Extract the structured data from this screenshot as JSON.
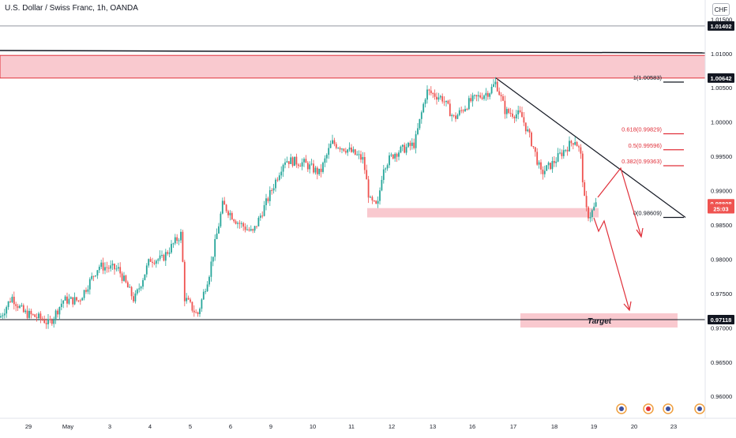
{
  "chart_data": {
    "type": "candlestick",
    "title": "U.S. Dollar / Swiss Franc, 1h, OANDA",
    "currency": "CHF",
    "ylim": [
      0.9568,
      1.0178
    ],
    "y_ticks": [
      "1.01500",
      "1.01000",
      "1.00500",
      "1.00000",
      "0.99500",
      "0.99000",
      "0.98500",
      "0.98000",
      "0.97500",
      "0.97000",
      "0.96500",
      "0.96000"
    ],
    "x_ticks": [
      "29",
      "May",
      "3",
      "4",
      "5",
      "6",
      "9",
      "10",
      "11",
      "12",
      "13",
      "16",
      "17",
      "18",
      "19",
      "20",
      "23"
    ],
    "price_tags": [
      {
        "label": "1.01402",
        "value": 1.01402,
        "style": "dark"
      },
      {
        "label": "1.00642",
        "value": 1.00642,
        "style": "dark"
      },
      {
        "label": "0.98808",
        "value": 0.98808,
        "style": "red"
      },
      {
        "label": "25:03",
        "value": 0.98736,
        "style": "red"
      },
      {
        "label": "0.97118",
        "value": 0.97118,
        "style": "dark"
      }
    ],
    "horizontal_lines": [
      1.01402,
      0.97118
    ],
    "resistance_zone": [
      1.00642,
      1.00972
    ],
    "support_zone": [
      0.98609,
      0.98745
    ],
    "target_label": "Target",
    "fibonacci": [
      {
        "label": "1(1.00583)",
        "value": 1.00583
      },
      {
        "label": "0.618(0.99829)",
        "value": 0.99829
      },
      {
        "label": "0.5(0.99596)",
        "value": 0.99596
      },
      {
        "label": "0.382(0.99363)",
        "value": 0.99363
      },
      {
        "label": "0(0.98609)",
        "value": 0.98609
      }
    ],
    "trendline": [
      [
        628,
        1.00642
      ],
      [
        868,
        0.98609
      ]
    ],
    "path": [
      {
        "x": 0,
        "y": 0.9715
      },
      {
        "x": 15,
        "y": 0.9745
      },
      {
        "x": 30,
        "y": 0.9722
      },
      {
        "x": 55,
        "y": 0.9712
      },
      {
        "x": 62,
        "y": 0.9705
      },
      {
        "x": 80,
        "y": 0.974
      },
      {
        "x": 100,
        "y": 0.974
      },
      {
        "x": 125,
        "y": 0.979
      },
      {
        "x": 150,
        "y": 0.9785
      },
      {
        "x": 170,
        "y": 0.974
      },
      {
        "x": 190,
        "y": 0.98
      },
      {
        "x": 205,
        "y": 0.98
      },
      {
        "x": 230,
        "y": 0.9838
      },
      {
        "x": 233,
        "y": 0.9745
      },
      {
        "x": 250,
        "y": 0.9718
      },
      {
        "x": 265,
        "y": 0.978
      },
      {
        "x": 282,
        "y": 0.988
      },
      {
        "x": 300,
        "y": 0.9855
      },
      {
        "x": 320,
        "y": 0.9838
      },
      {
        "x": 340,
        "y": 0.989
      },
      {
        "x": 360,
        "y": 0.9945
      },
      {
        "x": 385,
        "y": 0.994
      },
      {
        "x": 405,
        "y": 0.9925
      },
      {
        "x": 420,
        "y": 0.997
      },
      {
        "x": 440,
        "y": 0.996
      },
      {
        "x": 460,
        "y": 0.9945
      },
      {
        "x": 468,
        "y": 0.9885
      },
      {
        "x": 478,
        "y": 0.9875
      },
      {
        "x": 485,
        "y": 0.9935
      },
      {
        "x": 500,
        "y": 0.9955
      },
      {
        "x": 525,
        "y": 0.9968
      },
      {
        "x": 540,
        "y": 1.0045
      },
      {
        "x": 560,
        "y": 1.0035
      },
      {
        "x": 575,
        "y": 1.0005
      },
      {
        "x": 595,
        "y": 1.003
      },
      {
        "x": 620,
        "y": 1.0045
      },
      {
        "x": 628,
        "y": 1.0058
      },
      {
        "x": 640,
        "y": 1.0015
      },
      {
        "x": 660,
        "y": 1.001
      },
      {
        "x": 675,
        "y": 0.9965
      },
      {
        "x": 685,
        "y": 0.9925
      },
      {
        "x": 700,
        "y": 0.994
      },
      {
        "x": 715,
        "y": 0.996
      },
      {
        "x": 728,
        "y": 0.9975
      },
      {
        "x": 735,
        "y": 0.9955
      },
      {
        "x": 741,
        "y": 0.9875
      },
      {
        "x": 746,
        "y": 0.9862
      },
      {
        "x": 755,
        "y": 0.988
      }
    ]
  }
}
